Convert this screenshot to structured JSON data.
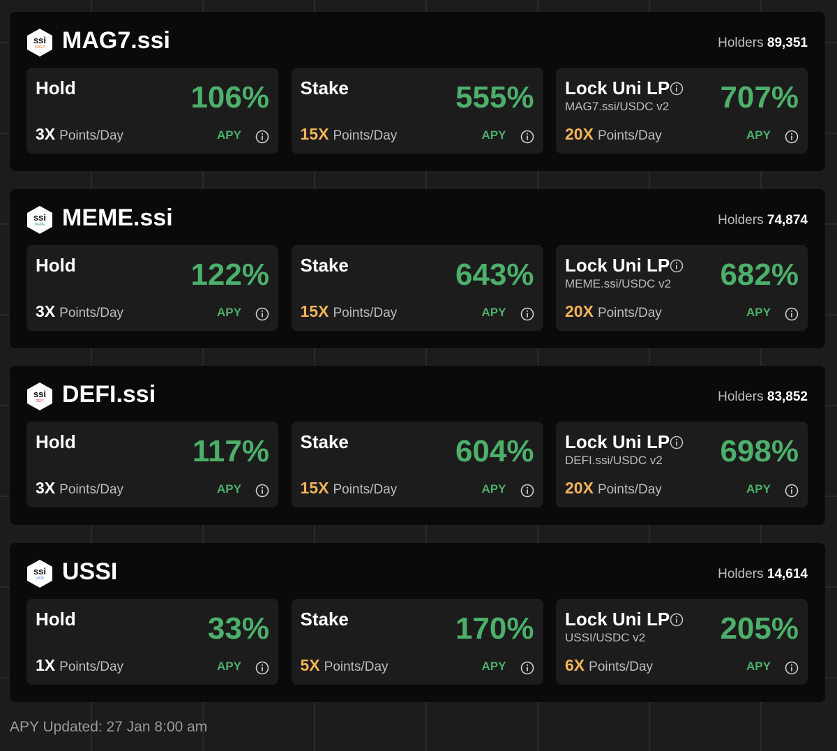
{
  "products": [
    {
      "logo": {
        "text": "ssi",
        "tag": "MAG7"
      },
      "name": "MAG7.ssi",
      "holders_label": "Holders",
      "holders": "89,351",
      "cards": [
        {
          "title": "Hold",
          "apy": "106%",
          "multiplier": "3X",
          "unit": "Points/Day",
          "apy_label": "APY"
        },
        {
          "title": "Stake",
          "apy": "555%",
          "multiplier": "15X",
          "unit": "Points/Day",
          "apy_label": "APY"
        },
        {
          "title": "Lock Uni LP",
          "pair": "MAG7.ssi/USDC v2",
          "apy": "707%",
          "multiplier": "20X",
          "unit": "Points/Day",
          "apy_label": "APY"
        }
      ]
    },
    {
      "logo": {
        "text": "ssi",
        "tag": "MEME"
      },
      "name": "MEME.ssi",
      "holders_label": "Holders",
      "holders": "74,874",
      "cards": [
        {
          "title": "Hold",
          "apy": "122%",
          "multiplier": "3X",
          "unit": "Points/Day",
          "apy_label": "APY"
        },
        {
          "title": "Stake",
          "apy": "643%",
          "multiplier": "15X",
          "unit": "Points/Day",
          "apy_label": "APY"
        },
        {
          "title": "Lock Uni LP",
          "pair": "MEME.ssi/USDC v2",
          "apy": "682%",
          "multiplier": "20X",
          "unit": "Points/Day",
          "apy_label": "APY"
        }
      ]
    },
    {
      "logo": {
        "text": "ssi",
        "tag": "DEFI"
      },
      "name": "DEFI.ssi",
      "holders_label": "Holders",
      "holders": "83,852",
      "cards": [
        {
          "title": "Hold",
          "apy": "117%",
          "multiplier": "3X",
          "unit": "Points/Day",
          "apy_label": "APY"
        },
        {
          "title": "Stake",
          "apy": "604%",
          "multiplier": "15X",
          "unit": "Points/Day",
          "apy_label": "APY"
        },
        {
          "title": "Lock Uni LP",
          "pair": "DEFI.ssi/USDC v2",
          "apy": "698%",
          "multiplier": "20X",
          "unit": "Points/Day",
          "apy_label": "APY"
        }
      ]
    },
    {
      "logo": {
        "text": "ssi",
        "tag": "USSI"
      },
      "name": "USSI",
      "holders_label": "Holders",
      "holders": "14,614",
      "cards": [
        {
          "title": "Hold",
          "apy": "33%",
          "multiplier": "1X",
          "unit": "Points/Day",
          "apy_label": "APY"
        },
        {
          "title": "Stake",
          "apy": "170%",
          "multiplier": "5X",
          "unit": "Points/Day",
          "apy_label": "APY"
        },
        {
          "title": "Lock Uni LP",
          "pair": "USSI/USDC v2",
          "apy": "205%",
          "multiplier": "6X",
          "unit": "Points/Day",
          "apy_label": "APY"
        }
      ]
    }
  ],
  "footer": "APY Updated: 27 Jan 8:00 am"
}
